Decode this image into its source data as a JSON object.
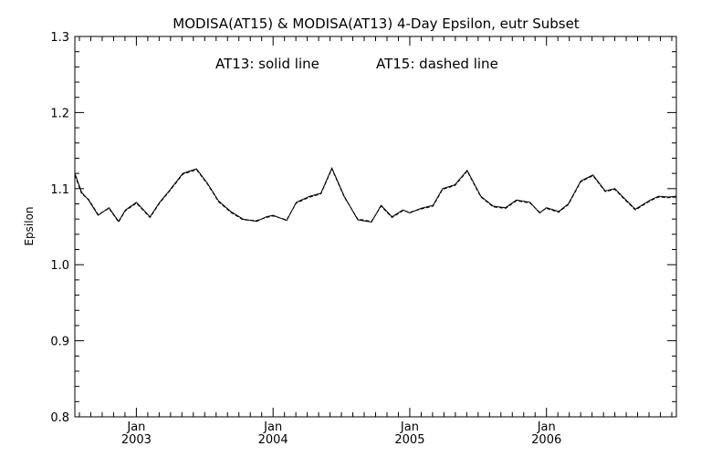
{
  "chart_data": {
    "type": "line",
    "title": "MODISA(AT15) & MODISA(AT13) 4-Day Epsilon, eutr Subset",
    "annotation_left": "AT13: solid line",
    "annotation_right": "AT15: dashed line",
    "xlabel": "",
    "ylabel": "Epsilon",
    "ylim": [
      0.8,
      1.3
    ],
    "xlim": [
      2002.55,
      2006.95
    ],
    "yticks": [
      {
        "value": 0.8,
        "label": "0.8"
      },
      {
        "value": 0.9,
        "label": "0.9"
      },
      {
        "value": 1.0,
        "label": "1.0"
      },
      {
        "value": 1.1,
        "label": "1.1"
      },
      {
        "value": 1.2,
        "label": "1.2"
      },
      {
        "value": 1.3,
        "label": "1.3"
      }
    ],
    "xticks": [
      {
        "value": 2003.0,
        "month": "Jan",
        "year": "2003"
      },
      {
        "value": 2004.0,
        "month": "Jan",
        "year": "2004"
      },
      {
        "value": 2005.0,
        "month": "Jan",
        "year": "2005"
      },
      {
        "value": 2006.0,
        "month": "Jan",
        "year": "2006"
      }
    ],
    "grid": false,
    "series": [
      {
        "name": "AT13",
        "style": "solid",
        "x": [
          2002.55,
          2002.6,
          2002.65,
          2002.72,
          2002.8,
          2002.87,
          2002.92,
          2002.97,
          2003.0,
          2003.1,
          2003.17,
          2003.24,
          2003.34,
          2003.44,
          2003.52,
          2003.6,
          2003.69,
          2003.78,
          2003.88,
          2003.95,
          2004.0,
          2004.1,
          2004.17,
          2004.27,
          2004.35,
          2004.43,
          2004.52,
          2004.62,
          2004.72,
          2004.79,
          2004.87,
          2004.95,
          2005.0,
          2005.08,
          2005.17,
          2005.24,
          2005.33,
          2005.42,
          2005.52,
          2005.61,
          2005.7,
          2005.78,
          2005.88,
          2005.95,
          2006.0,
          2006.09,
          2006.16,
          2006.25,
          2006.34,
          2006.43,
          2006.5,
          2006.57,
          2006.65,
          2006.76,
          2006.82,
          2006.89,
          2006.95
        ],
        "values": [
          1.12,
          1.095,
          1.085,
          1.065,
          1.075,
          1.057,
          1.072,
          1.078,
          1.082,
          1.063,
          1.082,
          1.097,
          1.12,
          1.126,
          1.107,
          1.084,
          1.07,
          1.06,
          1.057,
          1.063,
          1.065,
          1.058,
          1.082,
          1.09,
          1.094,
          1.127,
          1.09,
          1.059,
          1.056,
          1.078,
          1.063,
          1.072,
          1.068,
          1.074,
          1.078,
          1.1,
          1.105,
          1.124,
          1.09,
          1.077,
          1.075,
          1.085,
          1.082,
          1.068,
          1.075,
          1.07,
          1.08,
          1.11,
          1.118,
          1.097,
          1.1,
          1.087,
          1.073,
          1.085,
          1.09,
          1.089,
          1.09
        ]
      },
      {
        "name": "AT15",
        "style": "dashed",
        "x": [
          2002.55,
          2002.6,
          2002.65,
          2002.72,
          2002.8,
          2002.87,
          2002.92,
          2002.97,
          2003.0,
          2003.1,
          2003.17,
          2003.24,
          2003.34,
          2003.44,
          2003.52,
          2003.6,
          2003.69,
          2003.78,
          2003.88,
          2003.95,
          2004.0,
          2004.1,
          2004.17,
          2004.27,
          2004.35,
          2004.43,
          2004.52,
          2004.62,
          2004.72,
          2004.79,
          2004.87,
          2004.95,
          2005.0,
          2005.08,
          2005.17,
          2005.24,
          2005.33,
          2005.42,
          2005.52,
          2005.61,
          2005.7,
          2005.78,
          2005.88,
          2005.95,
          2006.0,
          2006.09,
          2006.16,
          2006.25,
          2006.34,
          2006.43,
          2006.5,
          2006.57,
          2006.65,
          2006.76,
          2006.82,
          2006.89,
          2006.95
        ],
        "values": [
          1.118,
          1.093,
          1.086,
          1.066,
          1.074,
          1.056,
          1.071,
          1.077,
          1.081,
          1.062,
          1.081,
          1.096,
          1.119,
          1.125,
          1.106,
          1.083,
          1.069,
          1.059,
          1.058,
          1.062,
          1.064,
          1.059,
          1.081,
          1.089,
          1.093,
          1.126,
          1.089,
          1.06,
          1.057,
          1.077,
          1.062,
          1.071,
          1.069,
          1.073,
          1.077,
          1.099,
          1.104,
          1.123,
          1.089,
          1.076,
          1.074,
          1.084,
          1.081,
          1.069,
          1.074,
          1.069,
          1.079,
          1.109,
          1.117,
          1.096,
          1.099,
          1.086,
          1.072,
          1.084,
          1.089,
          1.088,
          1.089
        ]
      }
    ]
  }
}
